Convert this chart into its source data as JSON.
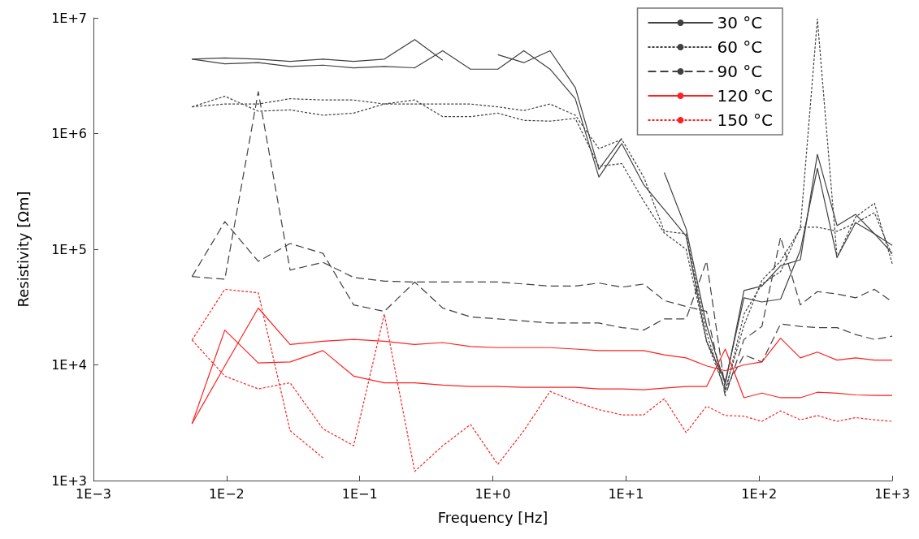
{
  "chart_data": {
    "type": "line",
    "xlabel": "Frequency [Hz]",
    "ylabel": "Resistivity [Ωm]",
    "log": "xy",
    "grid": false,
    "legend": "top right",
    "marker": "none",
    "x": [
      0.0055,
      0.0097,
      0.0173,
      0.03,
      0.053,
      0.09,
      0.153,
      0.259,
      0.42,
      0.68,
      1.09,
      1.71,
      2.69,
      4.16,
      6.26,
      9.3,
      13.6,
      19.4,
      28.3,
      40.3,
      55.7,
      77,
      105,
      145,
      204,
      274,
      385,
      531,
      735,
      1000
    ],
    "xlim": [
      0.001,
      1000
    ],
    "xticks": [
      {
        "value": 0.001,
        "label": "1E−3"
      },
      {
        "value": 0.01,
        "label": "1E−2"
      },
      {
        "value": 0.1,
        "label": "1E−1"
      },
      {
        "value": 1,
        "label": "1E+0"
      },
      {
        "value": 10,
        "label": "1E+1"
      },
      {
        "value": 100,
        "label": "1E+2"
      },
      {
        "value": 1000,
        "label": "1E+3"
      }
    ],
    "ylim": [
      1000,
      10000000
    ],
    "yticks": [
      {
        "value": 1000,
        "label": "1E+3"
      },
      {
        "value": 10000,
        "label": "1E+4"
      },
      {
        "value": 100000,
        "label": "1E+5"
      },
      {
        "value": 1000000,
        "label": "1E+6"
      },
      {
        "value": 10000000,
        "label": "1E+7"
      }
    ],
    "series": [
      {
        "name": "30 °C",
        "color": "#404040",
        "line_style": "solid",
        "values": [
          4400000,
          4500000,
          4400000,
          4200000,
          4400000,
          4200000,
          4400000,
          6500000,
          4300000,
          null,
          4800000,
          4100000,
          5200000,
          2500000,
          490000,
          910000,
          null,
          460000,
          150000,
          22000,
          6800,
          44000,
          48000,
          72000,
          81000,
          660000,
          160000,
          200000,
          136000,
          108000
        ]
      },
      {
        "color": "#404040",
        "line_style": "solid",
        "values": [
          4400000,
          4000000,
          4100000,
          3800000,
          3900000,
          3700000,
          3800000,
          3700000,
          5200000,
          3600000,
          3600000,
          5200000,
          3600000,
          2000000,
          420000,
          820000,
          360000,
          220000,
          130000,
          16000,
          7200,
          38000,
          35000,
          37000,
          98000,
          500000,
          85000,
          170000,
          136000,
          92000
        ]
      },
      {
        "name": "60 °C",
        "color": "#404040",
        "line_style": "dotted",
        "values": [
          1700000,
          2100000,
          1560000,
          1600000,
          1440000,
          1500000,
          1800000,
          1950000,
          1400000,
          1400000,
          1500000,
          1300000,
          1280000,
          1350000,
          520000,
          550000,
          260000,
          138000,
          100000,
          16000,
          6100,
          22000,
          54000,
          79000,
          150000,
          9800000,
          85000,
          190000,
          250000,
          75000
        ]
      },
      {
        "color": "#404040",
        "line_style": "dotted",
        "values": [
          1700000,
          1800000,
          1800000,
          2000000,
          1950000,
          1950000,
          1800000,
          1800000,
          1800000,
          1800000,
          1700000,
          1580000,
          1800000,
          1440000,
          740000,
          890000,
          420000,
          143000,
          136000,
          19000,
          5800,
          27500,
          50000,
          64000,
          155000,
          155000,
          143000,
          168000,
          207000,
          88000
        ]
      },
      {
        "name": "90 °C",
        "color": "#404040",
        "line_style": "dashed",
        "values": [
          58000,
          55000,
          2300000,
          66000,
          77000,
          57000,
          53000,
          52000,
          52000,
          52000,
          52000,
          50000,
          48000,
          48000,
          51000,
          47000,
          50000,
          36000,
          32000,
          29000,
          5400,
          16600,
          21500,
          127000,
          33000,
          43000,
          41000,
          38000,
          45000,
          35000
        ]
      },
      {
        "color": "#404040",
        "line_style": "dashed",
        "values": [
          58000,
          173000,
          78500,
          112000,
          92000,
          33000,
          29000,
          52000,
          31000,
          26000,
          25000,
          24000,
          23000,
          23000,
          23000,
          21000,
          20000,
          25000,
          25000,
          79000,
          6100,
          12200,
          10600,
          22600,
          21500,
          21000,
          21000,
          18300,
          16600,
          17700
        ]
      },
      {
        "name": "120 °C",
        "color": "#ff2020",
        "line_style": "solid",
        "values": [
          3100,
          20000,
          10400,
          10600,
          13300,
          8000,
          7000,
          7000,
          6700,
          6500,
          6500,
          6400,
          6400,
          6400,
          6200,
          6200,
          6100,
          6300,
          6500,
          6500,
          13700,
          5200,
          5700,
          5200,
          5200,
          5800,
          5700,
          5500,
          5450,
          5450
        ]
      },
      {
        "color": "#ff2020",
        "line_style": "solid",
        "values": [
          3100,
          9800,
          31000,
          15000,
          16000,
          16600,
          16000,
          15000,
          15600,
          14400,
          14100,
          14100,
          14100,
          13700,
          13300,
          13300,
          13300,
          12200,
          11500,
          9800,
          8900,
          10000,
          10600,
          17000,
          11500,
          12900,
          11000,
          11500,
          11000,
          11000
        ]
      },
      {
        "name": "150 °C",
        "color": "#ff2020",
        "line_style": "dotted",
        "values": [
          16400,
          8000,
          6200,
          7000,
          2800,
          2000,
          27500,
          1200,
          2000,
          3050,
          1380,
          2700,
          5900,
          4800,
          4100,
          3700,
          3700,
          5100,
          2600,
          4400,
          3650,
          3600,
          3250,
          4000,
          3350,
          3650,
          3250,
          3500,
          3350,
          3250
        ]
      },
      {
        "color": "#ff2020",
        "line_style": "dotted",
        "values": [
          16400,
          45000,
          42000,
          2700,
          1570,
          null,
          null,
          null,
          null,
          null,
          null,
          null,
          null,
          null,
          null,
          null,
          null,
          null,
          null,
          null,
          null,
          null,
          null,
          null,
          null,
          null,
          null,
          null,
          null,
          null
        ]
      }
    ]
  }
}
